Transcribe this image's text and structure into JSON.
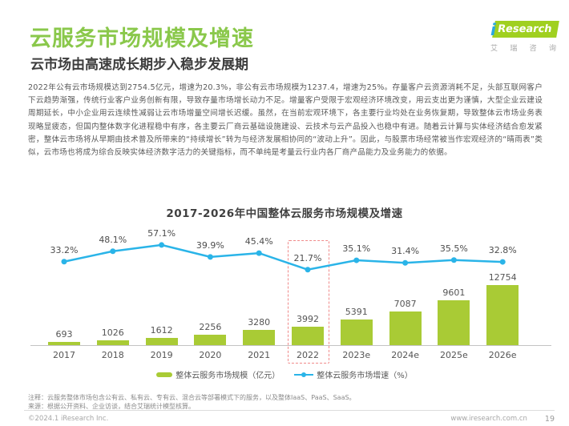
{
  "header": {
    "title": "云服务市场规模及增速",
    "subtitle": "云市场由高速成长期步入稳步发展期",
    "logo": {
      "i": "i",
      "research": "Research",
      "cn_chars": "艾瑞咨询"
    }
  },
  "body": {
    "paragraph": "2022年公有云市场规模达到2754.5亿元，增速为20.3%，非公有云市场规模为1237.4，增速为25%。存量客户云资源消耗不足，头部互联网客户下云趋势渐强，传统行业客户业务创新有限，导致存量市场增长动力不足。增量客户受限于宏观经济环境改变，用云支出更为谨慎，大型企业云建设周期延长，中小企业用云连续性减弱让云市场增量空间增长迟缓。虽然，在当前宏观环境下，各主要行业均处在业务恢复期，导致整体云市场业务表现略显疲态，但国内整体数字化进程稳中有序，各主要云厂商云基础设施建设、云技术与云产品投入也稳中有进。随着云计算与实体经济结合愈发紧密，整体云市场将从早期由技术普及所带来的“持续增长”转为与经济发展相协同的“波动上升”。因此，与股票市场经常被当作宏观经济的“晴雨表”类似，云市场也将成为综合反映实体经济数字活力的关键指标，而不单纯是考量云行业内各厂商产品能力及业务能力的依据。"
  },
  "chart_data": {
    "type": "bar",
    "title": "2017-2026年中国整体云服务市场规模及增速",
    "categories": [
      "2017",
      "2018",
      "2019",
      "2020",
      "2021",
      "2022",
      "2023e",
      "2024e",
      "2025e",
      "2026e"
    ],
    "series": [
      {
        "name": "整体云服务市场规模（亿元）",
        "type": "bar",
        "values": [
          693,
          1026,
          1612,
          2256,
          3280,
          3992,
          5391,
          7087,
          9601,
          12754
        ],
        "color": "#a9cb35"
      },
      {
        "name": "整体云服务市场增速（%）",
        "type": "line",
        "values": [
          33.2,
          48.1,
          57.1,
          39.9,
          45.4,
          21.7,
          35.1,
          31.4,
          35.5,
          32.8
        ],
        "color": "#2ab4e8"
      }
    ],
    "bar_value_labels": [
      "693",
      "1026",
      "1612",
      "2256",
      "3280",
      "3992",
      "5391",
      "7087",
      "9601",
      "12754"
    ],
    "growth_labels": [
      "33.2%",
      "48.1%",
      "57.1%",
      "39.9%",
      "45.4%",
      "21.7%",
      "35.1%",
      "31.4%",
      "35.5%",
      "32.8%"
    ],
    "highlight_category": "2022",
    "highlight_color": "#f08a8a",
    "legend_position": "bottom",
    "grid": false,
    "y_axis_visible": false,
    "bar_ylim": [
      0,
      12754
    ],
    "line_ylim_percent": [
      0,
      60
    ]
  },
  "footnotes": {
    "note": "注释：云服务整体市场包含公有云、私有云、专有云、混合云等部署模式下的服务，以及整体IaaS、PaaS、SaaS。",
    "source": "来源：根据公开资料、企业访谈，结合艾瑞统计模型核算。"
  },
  "footer": {
    "copyright": "©2024.1 iResearch Inc.",
    "website": "www.iresearch.com.cn",
    "page": "19"
  },
  "colors": {
    "title_green": "#8ac84b",
    "bar_green": "#a9cb35",
    "line_blue": "#2ab4e8",
    "highlight_red": "#f08a8a",
    "logo_green": "#a0d020",
    "logo_blue": "#2aa7e0"
  }
}
